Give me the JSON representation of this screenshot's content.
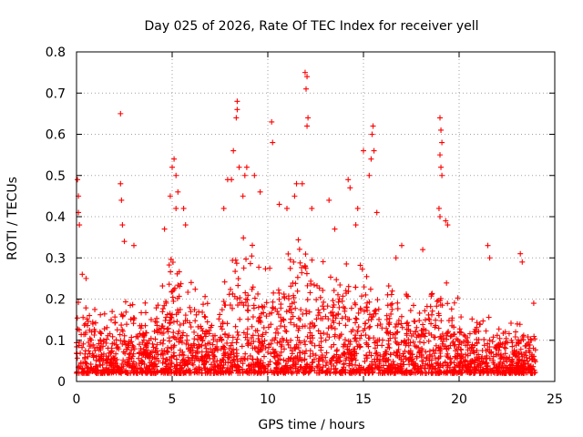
{
  "chart_data": {
    "type": "scatter",
    "title": "Day 025 of 2026, Rate Of TEC Index for receiver yell",
    "xlabel": "GPS time / hours",
    "ylabel": "ROTI / TECUs",
    "xlim": [
      0,
      25
    ],
    "ylim": [
      0,
      0.8
    ],
    "xticks": [
      0,
      5,
      10,
      15,
      20,
      25
    ],
    "xtick_labels": [
      "0",
      "5",
      "10",
      "15",
      "20",
      "25"
    ],
    "yticks": [
      0,
      0.1,
      0.2,
      0.3,
      0.4,
      0.5,
      0.6,
      0.7,
      0.8
    ],
    "ytick_labels": [
      "0",
      "0.1",
      "0.2",
      "0.3",
      "0.4",
      "0.5",
      "0.6",
      "0.7",
      "0.8"
    ],
    "grid": true,
    "marker": "+",
    "color": "#ff0000",
    "series": [
      {
        "name": "ROTI",
        "envelope": {
          "x": [
            0,
            0.5,
            1,
            1.5,
            2,
            2.5,
            3,
            3.5,
            4,
            4.5,
            5,
            5.5,
            6,
            6.5,
            7,
            7.5,
            8,
            8.5,
            9,
            9.5,
            10,
            10.5,
            11,
            11.5,
            12,
            12.5,
            13,
            13.5,
            14,
            14.5,
            15,
            15.5,
            16,
            16.5,
            17,
            17.5,
            18,
            18.5,
            19,
            19.5,
            20,
            20.5,
            21,
            21.5,
            22,
            22.5,
            23,
            23.5,
            24
          ],
          "y": [
            0.26,
            0.2,
            0.18,
            0.17,
            0.2,
            0.24,
            0.22,
            0.2,
            0.18,
            0.25,
            0.36,
            0.26,
            0.24,
            0.22,
            0.2,
            0.2,
            0.32,
            0.38,
            0.36,
            0.3,
            0.32,
            0.3,
            0.33,
            0.34,
            0.36,
            0.33,
            0.3,
            0.29,
            0.32,
            0.31,
            0.3,
            0.27,
            0.25,
            0.24,
            0.22,
            0.22,
            0.22,
            0.24,
            0.28,
            0.22,
            0.2,
            0.18,
            0.17,
            0.18,
            0.16,
            0.14,
            0.15,
            0.14,
            0.12
          ]
        },
        "floor": 0.02,
        "points": [
          [
            0.05,
            0.49
          ],
          [
            0.1,
            0.45
          ],
          [
            0.1,
            0.41
          ],
          [
            0.15,
            0.38
          ],
          [
            0.3,
            0.26
          ],
          [
            0.5,
            0.25
          ],
          [
            2.3,
            0.65
          ],
          [
            2.3,
            0.48
          ],
          [
            2.35,
            0.44
          ],
          [
            2.4,
            0.38
          ],
          [
            2.5,
            0.34
          ],
          [
            3.0,
            0.33
          ],
          [
            4.6,
            0.37
          ],
          [
            4.9,
            0.45
          ],
          [
            5.0,
            0.52
          ],
          [
            5.1,
            0.54
          ],
          [
            5.2,
            0.5
          ],
          [
            5.3,
            0.46
          ],
          [
            5.2,
            0.42
          ],
          [
            5.6,
            0.42
          ],
          [
            5.7,
            0.38
          ],
          [
            7.7,
            0.42
          ],
          [
            7.9,
            0.49
          ],
          [
            8.1,
            0.49
          ],
          [
            8.2,
            0.56
          ],
          [
            8.4,
            0.68
          ],
          [
            8.4,
            0.66
          ],
          [
            8.35,
            0.64
          ],
          [
            8.5,
            0.52
          ],
          [
            8.8,
            0.5
          ],
          [
            8.9,
            0.52
          ],
          [
            8.7,
            0.45
          ],
          [
            9.3,
            0.5
          ],
          [
            9.6,
            0.46
          ],
          [
            10.2,
            0.63
          ],
          [
            10.25,
            0.58
          ],
          [
            10.6,
            0.43
          ],
          [
            11.0,
            0.42
          ],
          [
            11.5,
            0.48
          ],
          [
            11.4,
            0.45
          ],
          [
            11.95,
            0.75
          ],
          [
            12.05,
            0.74
          ],
          [
            12.0,
            0.71
          ],
          [
            12.1,
            0.64
          ],
          [
            12.05,
            0.62
          ],
          [
            11.8,
            0.48
          ],
          [
            12.3,
            0.42
          ],
          [
            13.2,
            0.44
          ],
          [
            13.5,
            0.37
          ],
          [
            14.2,
            0.49
          ],
          [
            14.3,
            0.47
          ],
          [
            14.6,
            0.38
          ],
          [
            14.7,
            0.42
          ],
          [
            15.0,
            0.56
          ],
          [
            15.5,
            0.62
          ],
          [
            15.45,
            0.6
          ],
          [
            15.55,
            0.56
          ],
          [
            15.4,
            0.54
          ],
          [
            15.3,
            0.5
          ],
          [
            15.7,
            0.41
          ],
          [
            16.7,
            0.3
          ],
          [
            17.0,
            0.33
          ],
          [
            18.1,
            0.32
          ],
          [
            19.0,
            0.64
          ],
          [
            19.05,
            0.61
          ],
          [
            19.1,
            0.58
          ],
          [
            19.0,
            0.55
          ],
          [
            19.05,
            0.52
          ],
          [
            19.1,
            0.5
          ],
          [
            18.95,
            0.42
          ],
          [
            19.0,
            0.4
          ],
          [
            19.4,
            0.38
          ],
          [
            19.3,
            0.39
          ],
          [
            21.5,
            0.33
          ],
          [
            21.6,
            0.3
          ],
          [
            23.2,
            0.31
          ],
          [
            23.3,
            0.29
          ],
          [
            23.9,
            0.19
          ]
        ]
      }
    ]
  }
}
